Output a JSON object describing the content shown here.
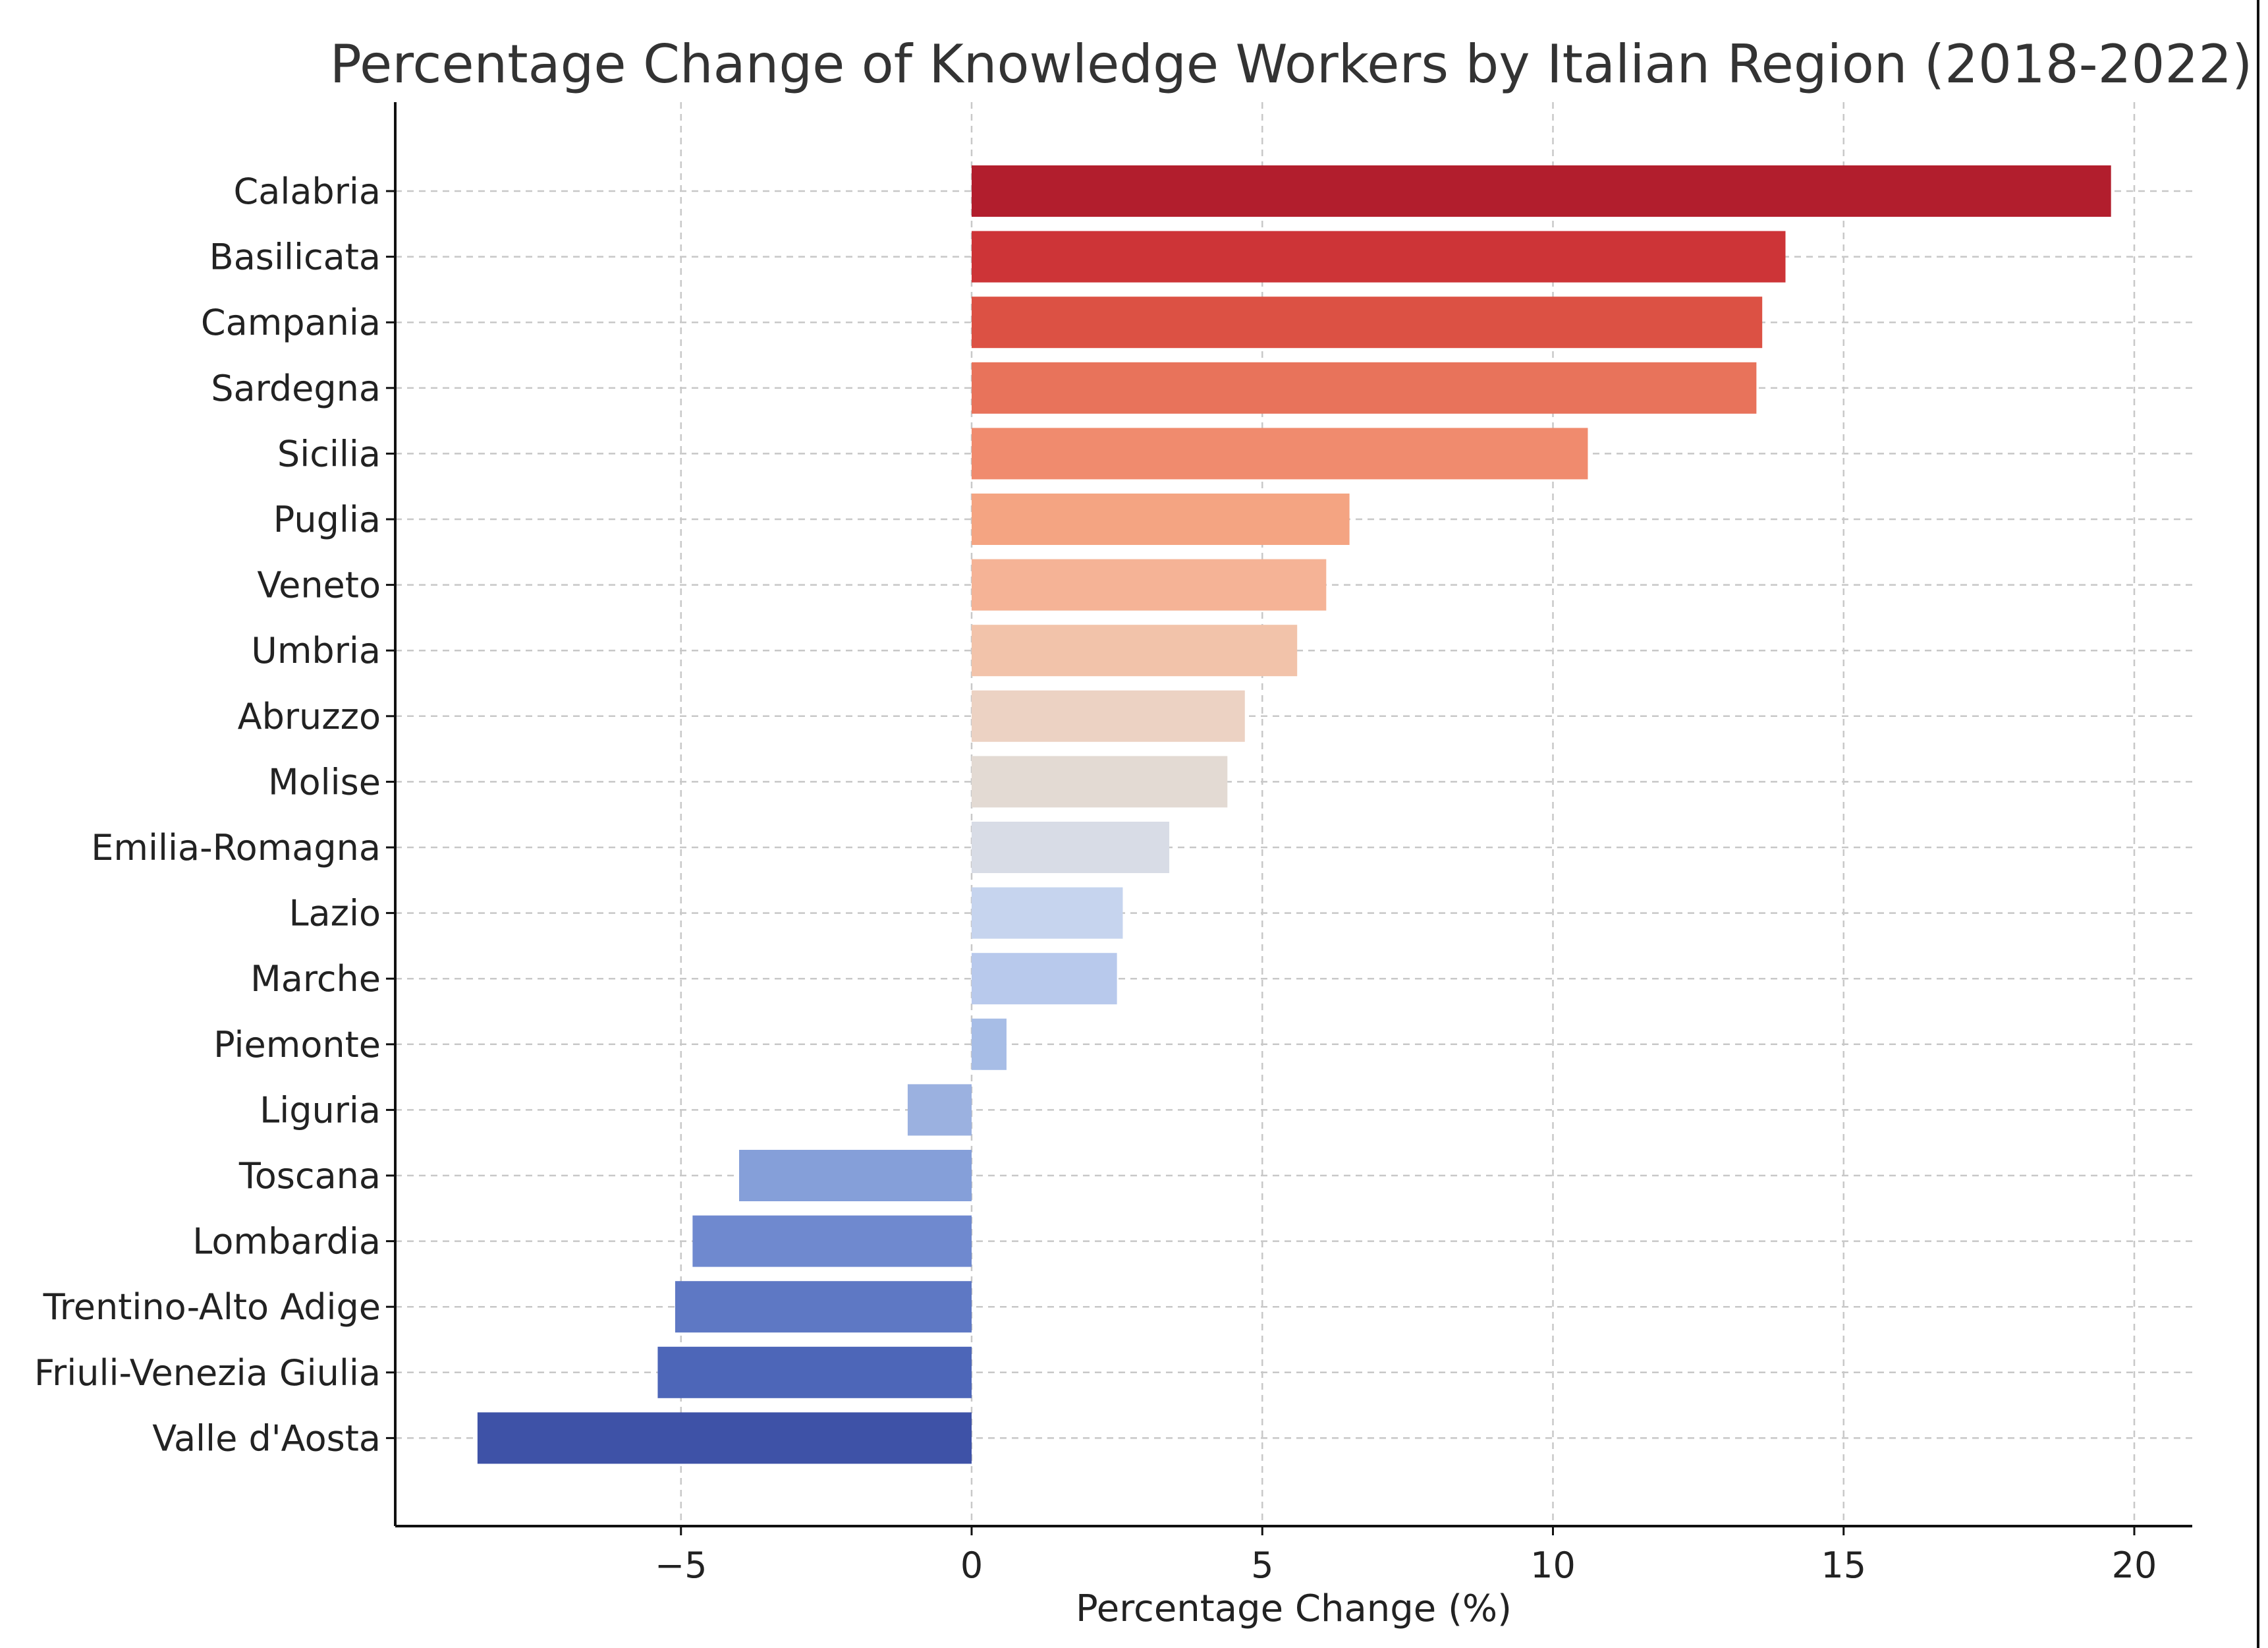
{
  "chart_data": {
    "type": "bar",
    "orientation": "horizontal",
    "title": "Percentage Change of Knowledge Workers by Italian Region (2018-2022)",
    "xlabel": "Percentage Change (%)",
    "ylabel": "",
    "xlim": [
      -10,
      21
    ],
    "xticks": [
      -5,
      0,
      5,
      10,
      15,
      20
    ],
    "xtick_labels": [
      "−5",
      "0",
      "5",
      "10",
      "15",
      "20"
    ],
    "grid": true,
    "categories": [
      "Calabria",
      "Basilicata",
      "Campania",
      "Sardegna",
      "Sicilia",
      "Puglia",
      "Veneto",
      "Umbria",
      "Abruzzo",
      "Molise",
      "Emilia-Romagna",
      "Lazio",
      "Marche",
      "Piemonte",
      "Liguria",
      "Toscana",
      "Lombardia",
      "Trentino-Alto Adige",
      "Friuli-Venezia Giulia",
      "Valle d'Aosta"
    ],
    "values": [
      19.6,
      14.0,
      13.6,
      13.5,
      10.6,
      6.5,
      6.1,
      5.6,
      4.7,
      4.4,
      3.4,
      2.6,
      2.5,
      0.6,
      -1.1,
      -4.0,
      -4.8,
      -5.1,
      -5.4,
      -8.5
    ],
    "colors": [
      "#b21e2d",
      "#cd3437",
      "#dc5144",
      "#e8735b",
      "#f08b6e",
      "#f4a482",
      "#f5b396",
      "#f2c3aa",
      "#ecd2c3",
      "#e3dad3",
      "#d8dce6",
      "#c6d4ee",
      "#b8c9ec",
      "#a7bde6",
      "#9bb1e0",
      "#859fd9",
      "#6f89cf",
      "#5e78c4",
      "#4d66b8",
      "#3e52a7"
    ]
  }
}
